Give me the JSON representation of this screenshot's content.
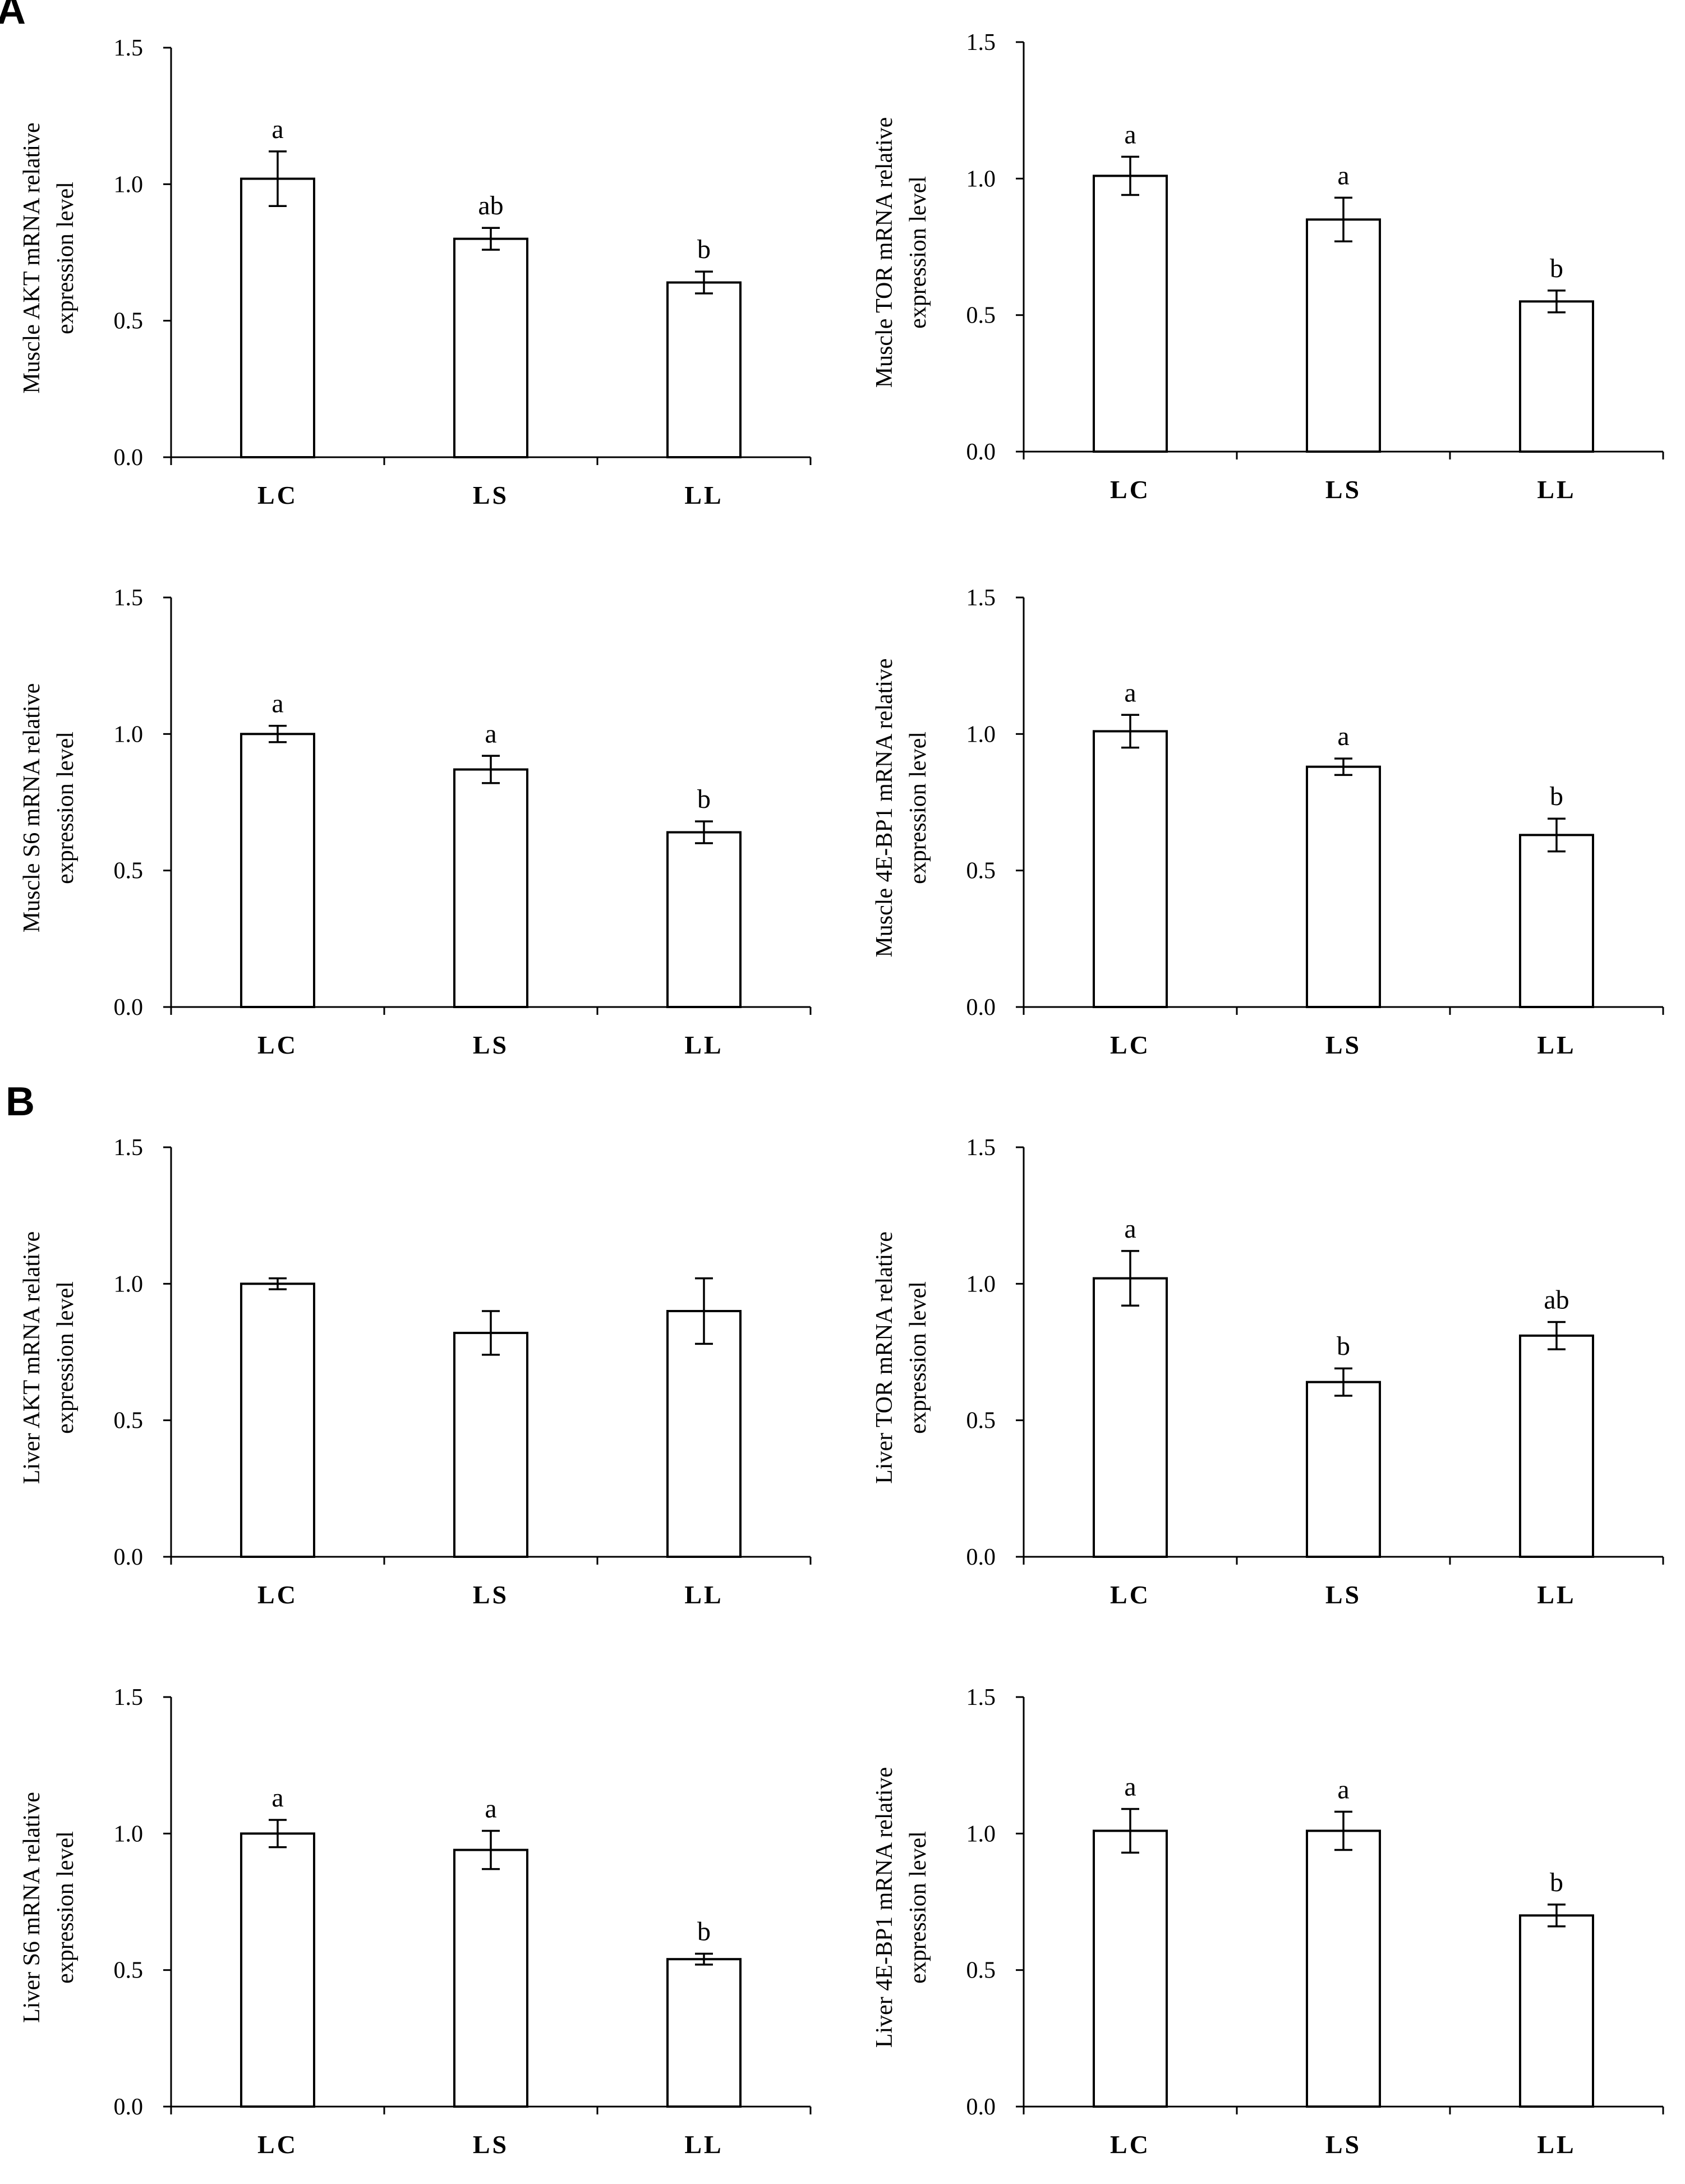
{
  "panel_labels": [
    "A",
    "B"
  ],
  "chart_data": [
    {
      "panel": "A",
      "type": "bar",
      "title": "",
      "ylabel": [
        "Muscle AKT mRNA  relative",
        "expression level"
      ],
      "xlabel": "",
      "categories": [
        "LC",
        "LS",
        "LL"
      ],
      "values": [
        1.02,
        0.8,
        0.64
      ],
      "errors": [
        0.1,
        0.04,
        0.04
      ],
      "letters": [
        "a",
        "ab",
        "b"
      ],
      "ylim": [
        0,
        1.5
      ],
      "yticks": [
        "0.0",
        "0.5",
        "1.0",
        "1.5"
      ]
    },
    {
      "panel": "A",
      "type": "bar",
      "title": "",
      "ylabel": [
        "Muscle TOR mRNA  relative",
        "expression level"
      ],
      "xlabel": "",
      "categories": [
        "LC",
        "LS",
        "LL"
      ],
      "values": [
        1.01,
        0.85,
        0.55
      ],
      "errors": [
        0.07,
        0.08,
        0.04
      ],
      "letters": [
        "a",
        "a",
        "b"
      ],
      "ylim": [
        0,
        1.5
      ],
      "yticks": [
        "0.0",
        "0.5",
        "1.0",
        "1.5"
      ]
    },
    {
      "panel": "A",
      "type": "bar",
      "title": "",
      "ylabel": [
        "Muscle S6 mRNA  relative",
        "expression level"
      ],
      "xlabel": "",
      "categories": [
        "LC",
        "LS",
        "LL"
      ],
      "values": [
        1.0,
        0.87,
        0.64
      ],
      "errors": [
        0.03,
        0.05,
        0.04
      ],
      "letters": [
        "a",
        "a",
        "b"
      ],
      "ylim": [
        0,
        1.5
      ],
      "yticks": [
        "0.0",
        "0.5",
        "1.0",
        "1.5"
      ]
    },
    {
      "panel": "A",
      "type": "bar",
      "title": "",
      "ylabel": [
        "Muscle 4E-BP1  mRNA  relative",
        "expression level"
      ],
      "xlabel": "",
      "categories": [
        "LC",
        "LS",
        "LL"
      ],
      "values": [
        1.01,
        0.88,
        0.63
      ],
      "errors": [
        0.06,
        0.03,
        0.06
      ],
      "letters": [
        "a",
        "a",
        "b"
      ],
      "ylim": [
        0,
        1.5
      ],
      "yticks": [
        "0.0",
        "0.5",
        "1.0",
        "1.5"
      ]
    },
    {
      "panel": "B",
      "type": "bar",
      "title": "",
      "ylabel": [
        "Liver  AKT mRNA  relative",
        "expression level"
      ],
      "xlabel": "",
      "categories": [
        "LC",
        "LS",
        "LL"
      ],
      "values": [
        1.0,
        0.82,
        0.9
      ],
      "errors": [
        0.02,
        0.08,
        0.12
      ],
      "letters": [
        "",
        "",
        ""
      ],
      "ylim": [
        0,
        1.5
      ],
      "yticks": [
        "0.0",
        "0.5",
        "1.0",
        "1.5"
      ]
    },
    {
      "panel": "B",
      "type": "bar",
      "title": "",
      "ylabel": [
        "Liver  TOR mRNA relative",
        "expression level"
      ],
      "xlabel": "",
      "categories": [
        "LC",
        "LS",
        "LL"
      ],
      "values": [
        1.02,
        0.64,
        0.81
      ],
      "errors": [
        0.1,
        0.05,
        0.05
      ],
      "letters": [
        "a",
        "b",
        "ab"
      ],
      "ylim": [
        0,
        1.5
      ],
      "yticks": [
        "0.0",
        "0.5",
        "1.0",
        "1.5"
      ]
    },
    {
      "panel": "B",
      "type": "bar",
      "title": "",
      "ylabel": [
        "Liver S6 mRNA relative",
        "expression level"
      ],
      "xlabel": "",
      "categories": [
        "LC",
        "LS",
        "LL"
      ],
      "values": [
        1.0,
        0.94,
        0.54
      ],
      "errors": [
        0.05,
        0.07,
        0.02
      ],
      "letters": [
        "a",
        "a",
        "b"
      ],
      "ylim": [
        0,
        1.5
      ],
      "yticks": [
        "0.0",
        "0.5",
        "1.0",
        "1.5"
      ]
    },
    {
      "panel": "B",
      "type": "bar",
      "title": "",
      "ylabel": [
        "Liver  4E-BP1  mRNA relative",
        "expression level"
      ],
      "xlabel": "",
      "categories": [
        "LC",
        "LS",
        "LL"
      ],
      "values": [
        1.01,
        1.01,
        0.7
      ],
      "errors": [
        0.08,
        0.07,
        0.04
      ],
      "letters": [
        "a",
        "a",
        "b"
      ],
      "ylim": [
        0,
        1.5
      ],
      "yticks": [
        "0.0",
        "0.5",
        "1.0",
        "1.5"
      ]
    }
  ]
}
